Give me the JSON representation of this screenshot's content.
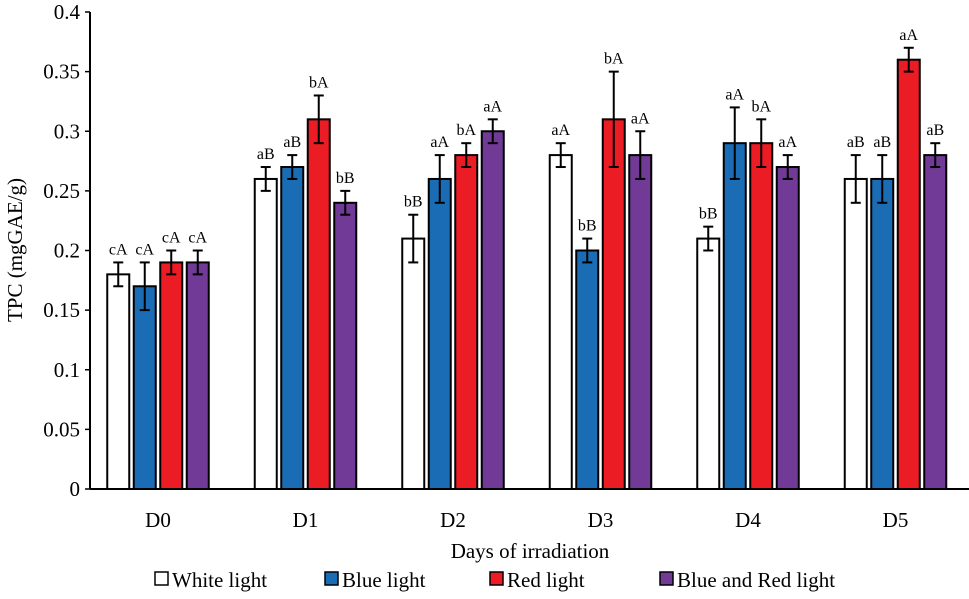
{
  "chart_data": {
    "type": "bar",
    "title": "",
    "xlabel": "Days of irradiation",
    "ylabel": "TPC (mgGAE/g)",
    "ylim": [
      0,
      0.4
    ],
    "yticks": [
      "0",
      "0.05",
      "0.1",
      "0.15",
      "0.2",
      "0.25",
      "0.3",
      "0.35",
      "0.4"
    ],
    "grid": false,
    "legend_position": "bottom",
    "categories": [
      "D0",
      "D1",
      "D2",
      "D3",
      "D4",
      "D5"
    ],
    "series": [
      {
        "name": "White light",
        "color": "#ffffff",
        "values": [
          0.18,
          0.26,
          0.21,
          0.28,
          0.21,
          0.26
        ],
        "errors": [
          0.01,
          0.01,
          0.02,
          0.01,
          0.01,
          0.02
        ],
        "labels": [
          "cA",
          "aB",
          "bB",
          "aA",
          "bB",
          "aB"
        ]
      },
      {
        "name": "Blue light",
        "color": "#1a6db5",
        "values": [
          0.17,
          0.27,
          0.26,
          0.2,
          0.29,
          0.26
        ],
        "errors": [
          0.02,
          0.01,
          0.02,
          0.01,
          0.03,
          0.02
        ],
        "labels": [
          "cA",
          "aB",
          "aA",
          "bB",
          "aA",
          "aB"
        ]
      },
      {
        "name": "Red light",
        "color": "#ec1c24",
        "values": [
          0.19,
          0.31,
          0.28,
          0.31,
          0.29,
          0.36
        ],
        "errors": [
          0.01,
          0.02,
          0.01,
          0.04,
          0.02,
          0.01
        ],
        "labels": [
          "cA",
          "bA",
          "bA",
          "bA",
          "bA",
          "aA"
        ]
      },
      {
        "name": "Blue and Red light",
        "color": "#703a96",
        "values": [
          0.19,
          0.24,
          0.3,
          0.28,
          0.27,
          0.28
        ],
        "errors": [
          0.01,
          0.01,
          0.01,
          0.02,
          0.01,
          0.01
        ],
        "labels": [
          "cA",
          "bB",
          "aA",
          "aA",
          "aA",
          "aB"
        ]
      }
    ]
  }
}
